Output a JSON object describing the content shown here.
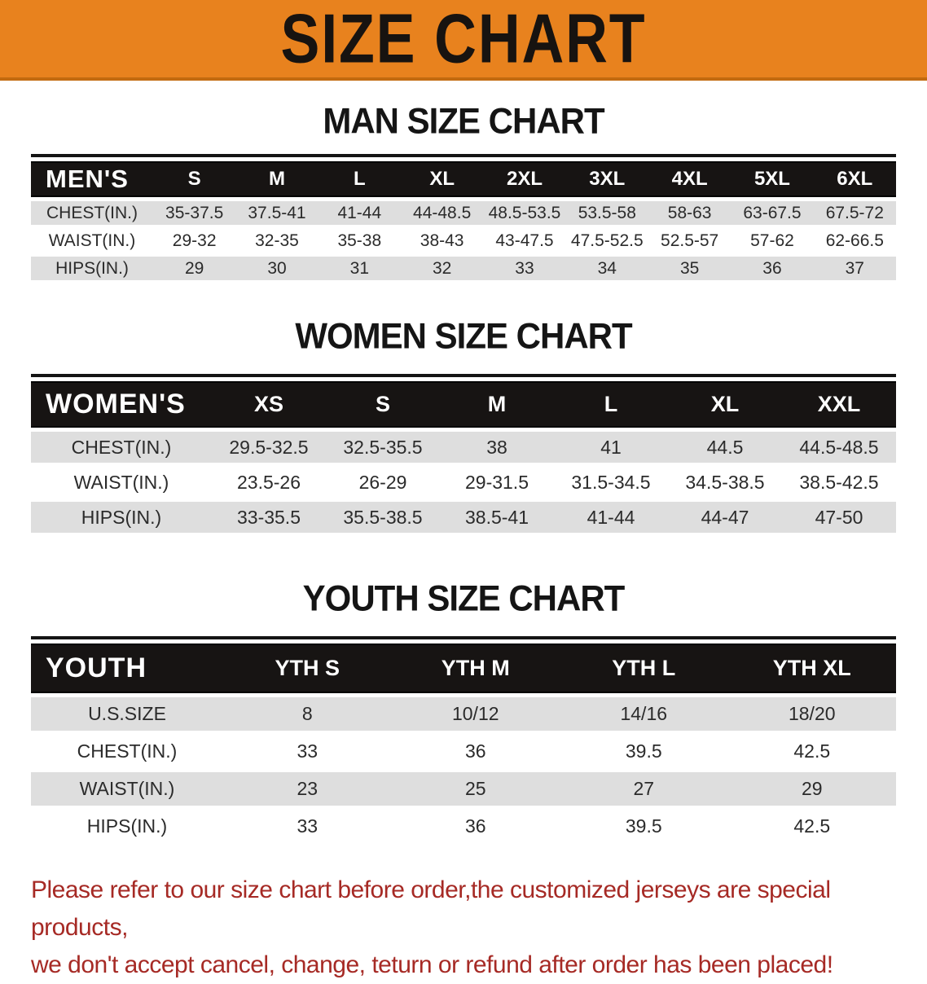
{
  "banner": {
    "title": "SIZE CHART"
  },
  "colors": {
    "banner_orange": "#E8821E",
    "banner_edge": "#C26A10",
    "header_black": "#171413",
    "row_gray": "#DEDEDE",
    "disclaimer_red": "#A62A25"
  },
  "tables": [
    {
      "id": "men",
      "title": "MAN SIZE CHART",
      "header_label": "MEN'S",
      "columns": [
        "S",
        "M",
        "L",
        "XL",
        "2XL",
        "3XL",
        "4XL",
        "5XL",
        "6XL"
      ],
      "rows": [
        {
          "label": "CHEST(IN.)",
          "values": [
            "35-37.5",
            "37.5-41",
            "41-44",
            "44-48.5",
            "48.5-53.5",
            "53.5-58",
            "58-63",
            "63-67.5",
            "67.5-72"
          ]
        },
        {
          "label": "WAIST(IN.)",
          "values": [
            "29-32",
            "32-35",
            "35-38",
            "38-43",
            "43-47.5",
            "47.5-52.5",
            "52.5-57",
            "57-62",
            "62-66.5"
          ]
        },
        {
          "label": "HIPS(IN.)",
          "values": [
            "29",
            "30",
            "31",
            "32",
            "33",
            "34",
            "35",
            "36",
            "37"
          ]
        }
      ]
    },
    {
      "id": "women",
      "title": "WOMEN SIZE CHART",
      "header_label": "WOMEN'S",
      "columns": [
        "XS",
        "S",
        "M",
        "L",
        "XL",
        "XXL"
      ],
      "rows": [
        {
          "label": "CHEST(IN.)",
          "values": [
            "29.5-32.5",
            "32.5-35.5",
            "38",
            "41",
            "44.5",
            "44.5-48.5"
          ]
        },
        {
          "label": "WAIST(IN.)",
          "values": [
            "23.5-26",
            "26-29",
            "29-31.5",
            "31.5-34.5",
            "34.5-38.5",
            "38.5-42.5"
          ]
        },
        {
          "label": "HIPS(IN.)",
          "values": [
            "33-35.5",
            "35.5-38.5",
            "38.5-41",
            "41-44",
            "44-47",
            "47-50"
          ]
        }
      ]
    },
    {
      "id": "youth",
      "title": "YOUTH SIZE CHART",
      "header_label": "YOUTH",
      "columns": [
        "YTH S",
        "YTH M",
        "YTH L",
        "YTH XL"
      ],
      "rows": [
        {
          "label": "U.S.SIZE",
          "values": [
            "8",
            "10/12",
            "14/16",
            "18/20"
          ]
        },
        {
          "label": "CHEST(IN.)",
          "values": [
            "33",
            "36",
            "39.5",
            "42.5"
          ]
        },
        {
          "label": "WAIST(IN.)",
          "values": [
            "23",
            "25",
            "27",
            "29"
          ]
        },
        {
          "label": "HIPS(IN.)",
          "values": [
            "33",
            "36",
            "39.5",
            "42.5"
          ]
        }
      ]
    }
  ],
  "disclaimer": {
    "lines": [
      "Please refer to our size chart before order,the customized jerseys are special products,",
      "we don't accept cancel, change, teturn or refund after order has been placed!"
    ]
  }
}
